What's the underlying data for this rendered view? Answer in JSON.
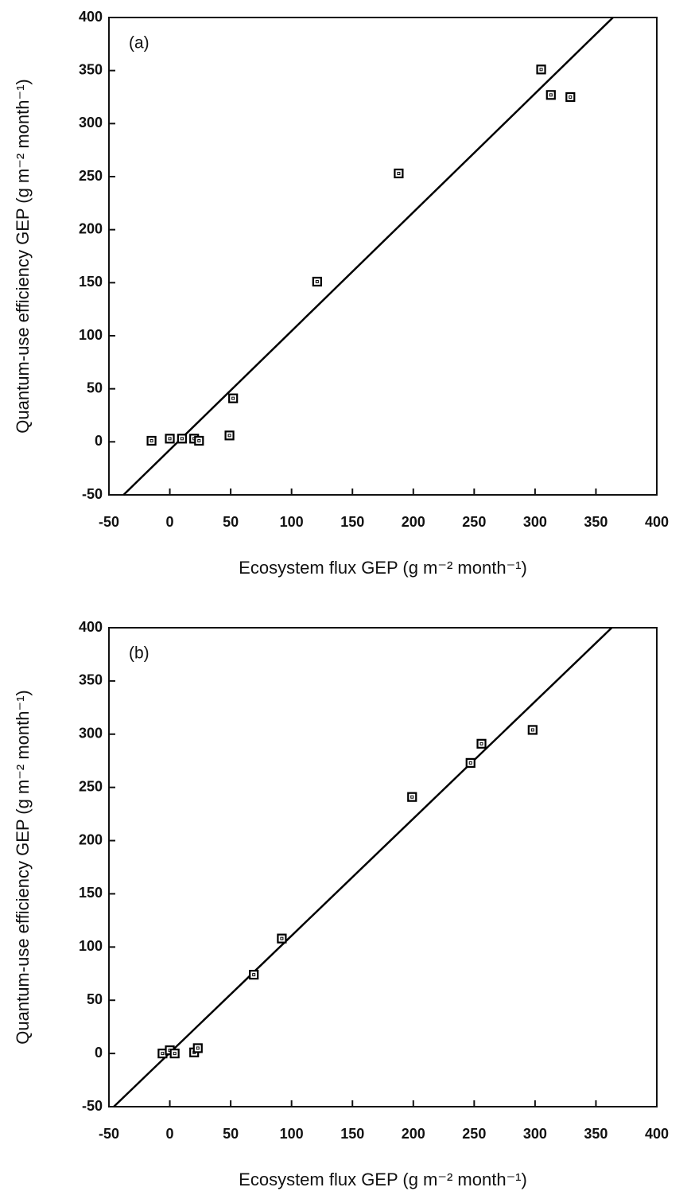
{
  "chart_data": [
    {
      "type": "scatter",
      "panel_label": "(a)",
      "x_label": "Ecosystem flux GEP (g m⁻² month⁻¹)",
      "y_label": "Quantum-use efficiency GEP (g m⁻² month⁻¹)",
      "x": [
        -15,
        0,
        10,
        20,
        24,
        49,
        52,
        121,
        188,
        305,
        313,
        329
      ],
      "y": [
        1,
        3,
        3,
        3,
        1,
        6,
        41,
        151,
        253,
        351,
        327,
        325
      ],
      "fit_line": {
        "x": [
          -38,
          364
        ],
        "y": [
          -50,
          400
        ]
      },
      "color": "#000000",
      "xlim": [
        -50,
        400
      ],
      "ylim": [
        -50,
        400
      ],
      "xticks": [
        -50,
        0,
        50,
        100,
        150,
        200,
        250,
        300,
        350,
        400
      ],
      "yticks": [
        -50,
        0,
        50,
        100,
        150,
        200,
        250,
        300,
        350,
        400
      ]
    },
    {
      "type": "scatter",
      "panel_label": "(b)",
      "x_label": "Ecosystem flux GEP (g m⁻² month⁻¹)",
      "y_label": "Quantum-use efficiency GEP (g m⁻² month⁻¹)",
      "x": [
        -6,
        0,
        4,
        20,
        23,
        69,
        92,
        199,
        247,
        256,
        298
      ],
      "y": [
        0,
        3,
        0,
        1,
        5,
        74,
        108,
        241,
        273,
        291,
        304
      ],
      "fit_line": {
        "x": [
          -46,
          363
        ],
        "y": [
          -50,
          400
        ]
      },
      "color": "#000000",
      "xlim": [
        -50,
        400
      ],
      "ylim": [
        -50,
        400
      ],
      "xticks": [
        -50,
        0,
        50,
        100,
        150,
        200,
        250,
        300,
        350,
        400
      ],
      "yticks": [
        -50,
        0,
        50,
        100,
        150,
        200,
        250,
        300,
        350,
        400
      ]
    }
  ]
}
